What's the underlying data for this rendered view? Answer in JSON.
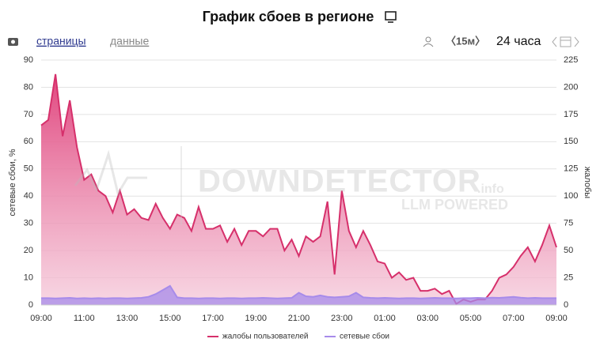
{
  "header": {
    "title": "График сбоев в регионе"
  },
  "toolbar": {
    "tabs": [
      "страницы",
      "данные"
    ],
    "step": "〈15м〉",
    "range": "24 часа"
  },
  "watermark": {
    "brand": "DOWNDETECTOR",
    "suffix": ".info",
    "tagline": "LLM POWERED"
  },
  "chart_data": {
    "type": "area",
    "y_label": "сетевые сбои, %",
    "y2_label": "жалобы",
    "categories": [
      "09:00",
      null,
      null,
      null,
      null,
      null,
      "11:00",
      null,
      null,
      null,
      null,
      null,
      "13:00",
      null,
      null,
      null,
      null,
      null,
      "15:00",
      null,
      null,
      null,
      null,
      null,
      "17:00",
      null,
      null,
      null,
      null,
      null,
      "19:00",
      null,
      null,
      null,
      null,
      null,
      "21:00",
      null,
      null,
      null,
      null,
      null,
      "23:00",
      null,
      null,
      null,
      null,
      null,
      "01:00",
      null,
      null,
      null,
      null,
      null,
      "03:00",
      null,
      null,
      null,
      null,
      null,
      "05:00",
      null,
      null,
      null,
      null,
      null,
      "07:00",
      null,
      null,
      null,
      null,
      null,
      "09:00"
    ],
    "series": [
      {
        "name": "жалобы пользователей",
        "color": "#d6306b",
        "axis": "y2",
        "values": [
          165,
          170,
          212,
          155,
          188,
          145,
          115,
          120,
          105,
          100,
          85,
          105,
          83,
          88,
          80,
          78,
          93,
          80,
          70,
          83,
          80,
          68,
          90,
          70,
          70,
          73,
          58,
          70,
          55,
          68,
          68,
          63,
          70,
          70,
          50,
          60,
          45,
          63,
          58,
          63,
          95,
          28,
          105,
          68,
          53,
          68,
          55,
          40,
          38,
          25,
          30,
          23,
          25,
          13,
          13,
          15,
          10,
          13,
          1,
          5,
          3,
          5,
          5,
          13,
          25,
          28,
          35,
          45,
          53,
          40,
          55,
          73,
          53
        ]
      },
      {
        "name": "сетевые сбои",
        "color": "#a78bea",
        "values": [
          2.5,
          2.5,
          2.4,
          2.5,
          2.6,
          2.4,
          2.5,
          2.4,
          2.5,
          2.4,
          2.5,
          2.5,
          2.4,
          2.5,
          2.6,
          3,
          4,
          5.5,
          7,
          2.8,
          2.5,
          2.5,
          2.4,
          2.5,
          2.5,
          2.4,
          2.5,
          2.5,
          2.4,
          2.5,
          2.5,
          2.6,
          2.5,
          2.4,
          2.5,
          2.6,
          4.5,
          3.2,
          3,
          3.5,
          3,
          2.8,
          3,
          3.2,
          4.5,
          2.8,
          2.6,
          2.5,
          2.6,
          2.5,
          2.4,
          2.5,
          2.5,
          2.4,
          2.5,
          2.6,
          2.5,
          2.5,
          2.4,
          2.5,
          2.5,
          2.6,
          2.5,
          2.7,
          2.6,
          2.8,
          3,
          2.7,
          2.5,
          2.6,
          2.5,
          2.5,
          2.5
        ]
      }
    ],
    "ylim": [
      0,
      90
    ],
    "yticks": [
      0,
      10,
      20,
      30,
      40,
      50,
      60,
      70,
      80,
      90
    ],
    "y2lim": [
      0,
      225
    ],
    "y2ticks": [
      0,
      25,
      50,
      75,
      100,
      125,
      150,
      175,
      200,
      225
    ],
    "grid": true,
    "legend": "bottom"
  }
}
